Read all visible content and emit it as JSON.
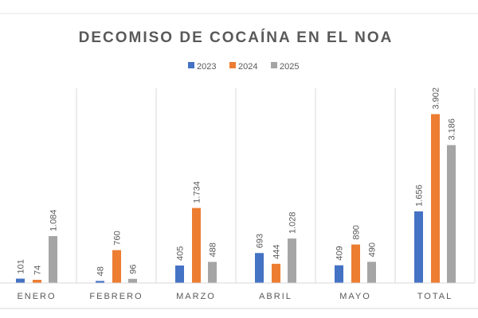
{
  "chart_data": {
    "type": "bar",
    "title": "DECOMISO DE COCAÍNA EN EL NOA",
    "categories": [
      "ENERO",
      "FEBRERO",
      "MARZO",
      "ABRIL",
      "MAYO",
      "TOTAL"
    ],
    "series": [
      {
        "name": "2023",
        "color": "#4472C4",
        "values": [
          101,
          48,
          405,
          693,
          409,
          1656
        ],
        "labels": [
          "101",
          "48",
          "405",
          "693",
          "409",
          "1.656"
        ]
      },
      {
        "name": "2024",
        "color": "#ED7D31",
        "values": [
          74,
          760,
          1734,
          444,
          890,
          3902
        ],
        "labels": [
          "74",
          "760",
          "1.734",
          "444",
          "890",
          "3.902"
        ]
      },
      {
        "name": "2025",
        "color": "#A5A5A5",
        "values": [
          1084,
          96,
          488,
          1028,
          490,
          3186
        ],
        "labels": [
          "1.084",
          "96",
          "488",
          "1.028",
          "490",
          "3.186"
        ]
      }
    ],
    "ylim": [
      0,
      4500
    ],
    "legend": "top",
    "grid": "vertical category separators",
    "xlabel": "",
    "ylabel": ""
  }
}
